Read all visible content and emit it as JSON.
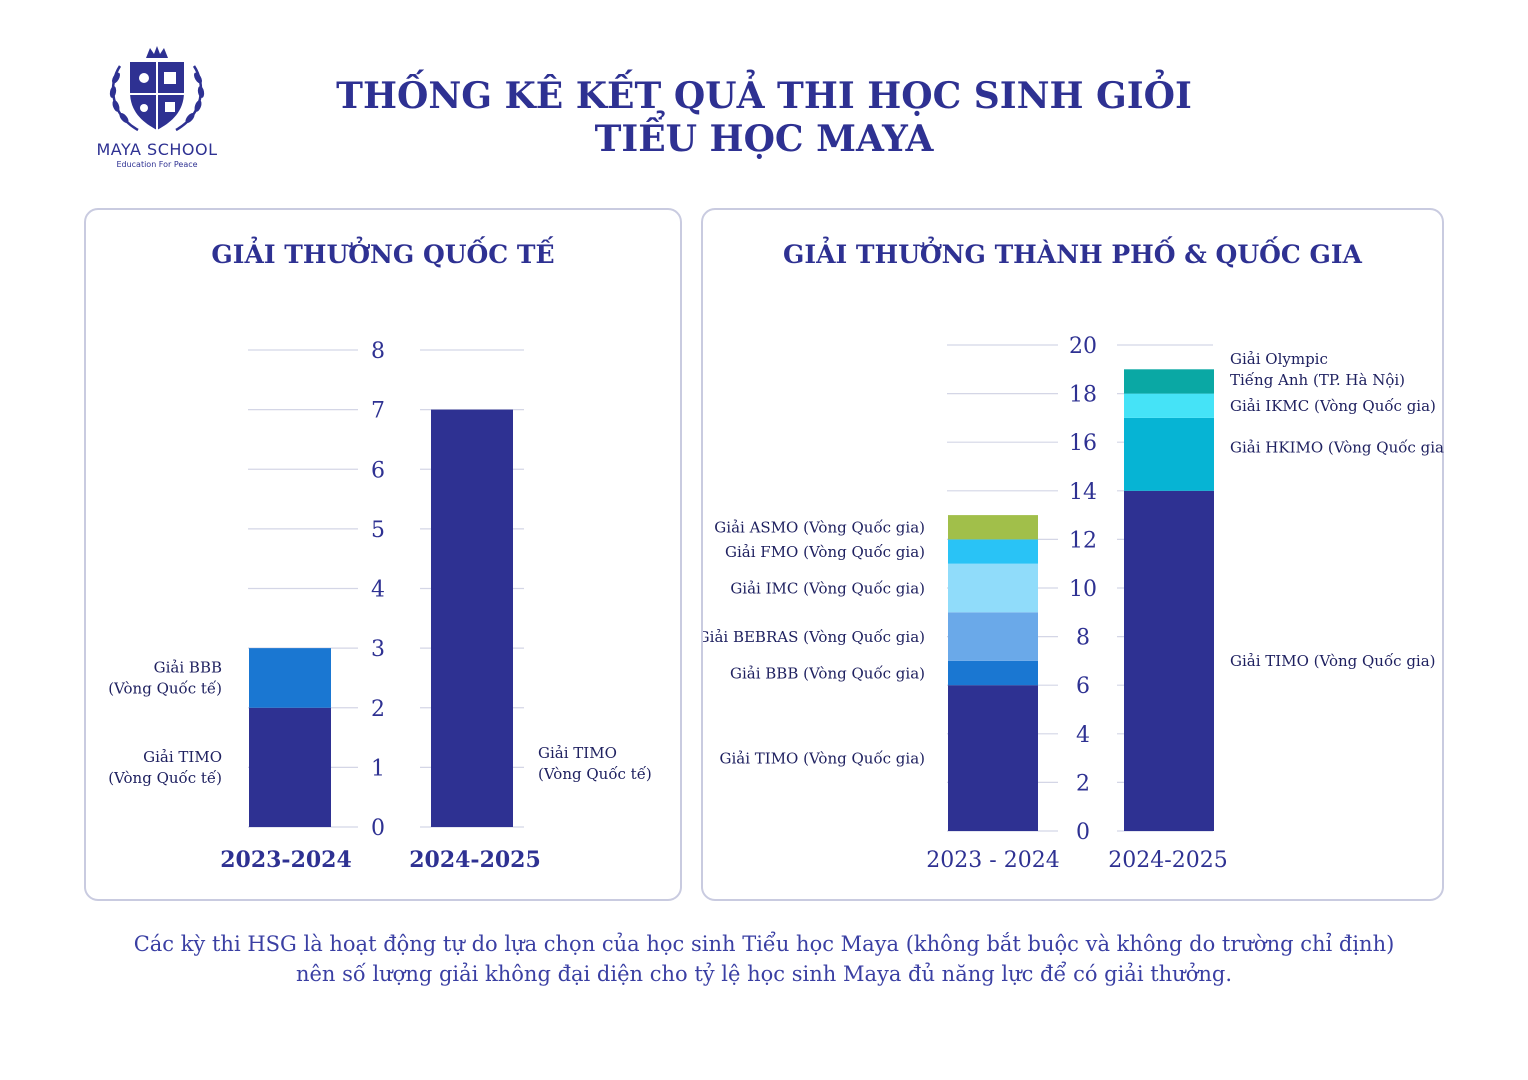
{
  "logo": {
    "name": "MAYA SCHOOL",
    "tagline": "Education For Peace",
    "icon": "crest-icon"
  },
  "title_line1": "THỐNG KÊ KẾT QUẢ THI HỌC SINH GIỎI",
  "title_line2": "TIỂU HỌC MAYA",
  "footnote_line1": "Các kỳ thi HSG là hoạt động tự do lựa chọn của học sinh Tiểu học Maya (không bắt buộc và không do trường chỉ định)",
  "footnote_line2": "nên số lượng giải không đại diện cho tỷ lệ học sinh Maya đủ năng lực để có giải thưởng.",
  "colors": {
    "navy": "#2e3192",
    "blue": "#1a77d2",
    "light_blue": "#6aa9e9",
    "pale_blue": "#90dcfa",
    "sky": "#29c3f6",
    "green": "#a1bf4a",
    "teal": "#06b4d4",
    "aqua": "#45e3f7",
    "dark_teal": "#0aa8a4"
  },
  "chart_data": [
    {
      "type": "bar",
      "stacked": true,
      "title": "GIẢI THƯỞNG QUỐC TẾ",
      "categories": [
        "2023-2024",
        "2024-2025"
      ],
      "yticks": [
        "0",
        "1",
        "2",
        "3",
        "4",
        "5",
        "6",
        "7",
        "8"
      ],
      "ylim": [
        0,
        8
      ],
      "grid": true,
      "series": [
        {
          "name": "Giải TIMO (Vòng Quốc tế)",
          "values": [
            2,
            7
          ],
          "color": "#2e3192"
        },
        {
          "name": "Giải BBB (Vòng Quốc tế)",
          "values": [
            1,
            0
          ],
          "color": "#1a77d2"
        }
      ]
    },
    {
      "type": "bar",
      "stacked": true,
      "title": "GIẢI THƯỞNG THÀNH PHỐ & QUỐC GIA",
      "categories": [
        "2023 - 2024",
        "2024-2025"
      ],
      "yticks": [
        "0",
        "2",
        "4",
        "6",
        "8",
        "10",
        "12",
        "14",
        "16",
        "18",
        "20"
      ],
      "ylim": [
        0,
        20
      ],
      "grid": true,
      "series": [
        {
          "name": "Giải TIMO (Vòng Quốc gia)",
          "values": [
            6,
            14
          ],
          "color": "#2e3192"
        },
        {
          "name": "Giải BBB (Vòng Quốc gia)",
          "values": [
            1,
            0
          ],
          "color": "#1a77d2"
        },
        {
          "name": "Giải BEBRAS (Vòng Quốc gia)",
          "values": [
            2,
            0
          ],
          "color": "#6aa9e9"
        },
        {
          "name": "Giải IMC (Vòng Quốc gia)",
          "values": [
            2,
            0
          ],
          "color": "#90dcfa"
        },
        {
          "name": "Giải FMO (Vòng Quốc gia)",
          "values": [
            1,
            0
          ],
          "color": "#29c3f6"
        },
        {
          "name": "Giải ASMO (Vòng Quốc gia)",
          "values": [
            1,
            0
          ],
          "color": "#a1bf4a"
        },
        {
          "name": "Giải HKIMO (Vòng Quốc gia)",
          "values": [
            0,
            3
          ],
          "color": "#06b4d4"
        },
        {
          "name": "Giải IKMC (Vòng Quốc gia)",
          "values": [
            0,
            1
          ],
          "color": "#45e3f7"
        },
        {
          "name": "Giải Olympic Tiếng Anh (TP. Hà Nội)",
          "values": [
            0,
            1
          ],
          "color": "#0aa8a4"
        }
      ]
    }
  ]
}
